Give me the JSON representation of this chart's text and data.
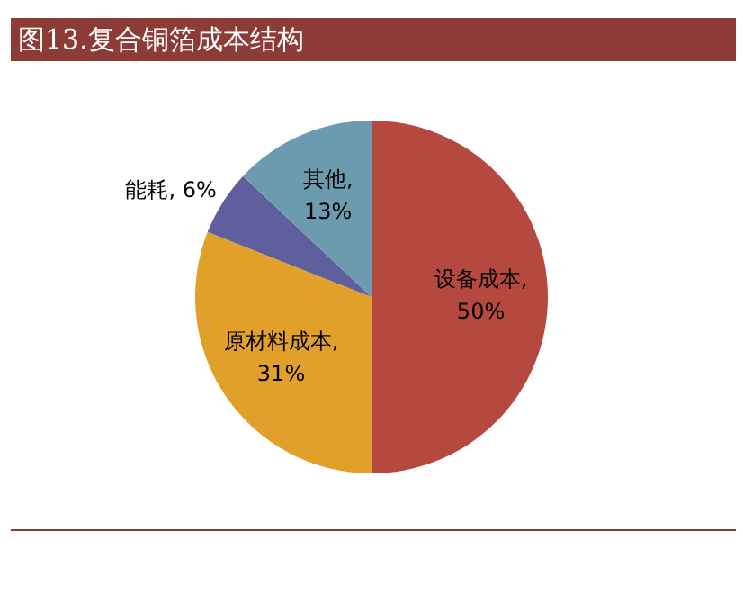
{
  "chart_data": {
    "type": "pie",
    "title": "图13.复合铜箔成本结构",
    "categories": [
      "设备成本",
      "原材料成本",
      "能耗",
      "其他"
    ],
    "values": [
      50,
      31,
      6,
      13
    ],
    "colors": [
      "#b5483f",
      "#e0a02a",
      "#5f5f9e",
      "#6c9bb0"
    ],
    "value_labels": [
      ", 50%",
      ", 31%",
      ", 6%",
      ", 13%"
    ],
    "legend": false
  }
}
